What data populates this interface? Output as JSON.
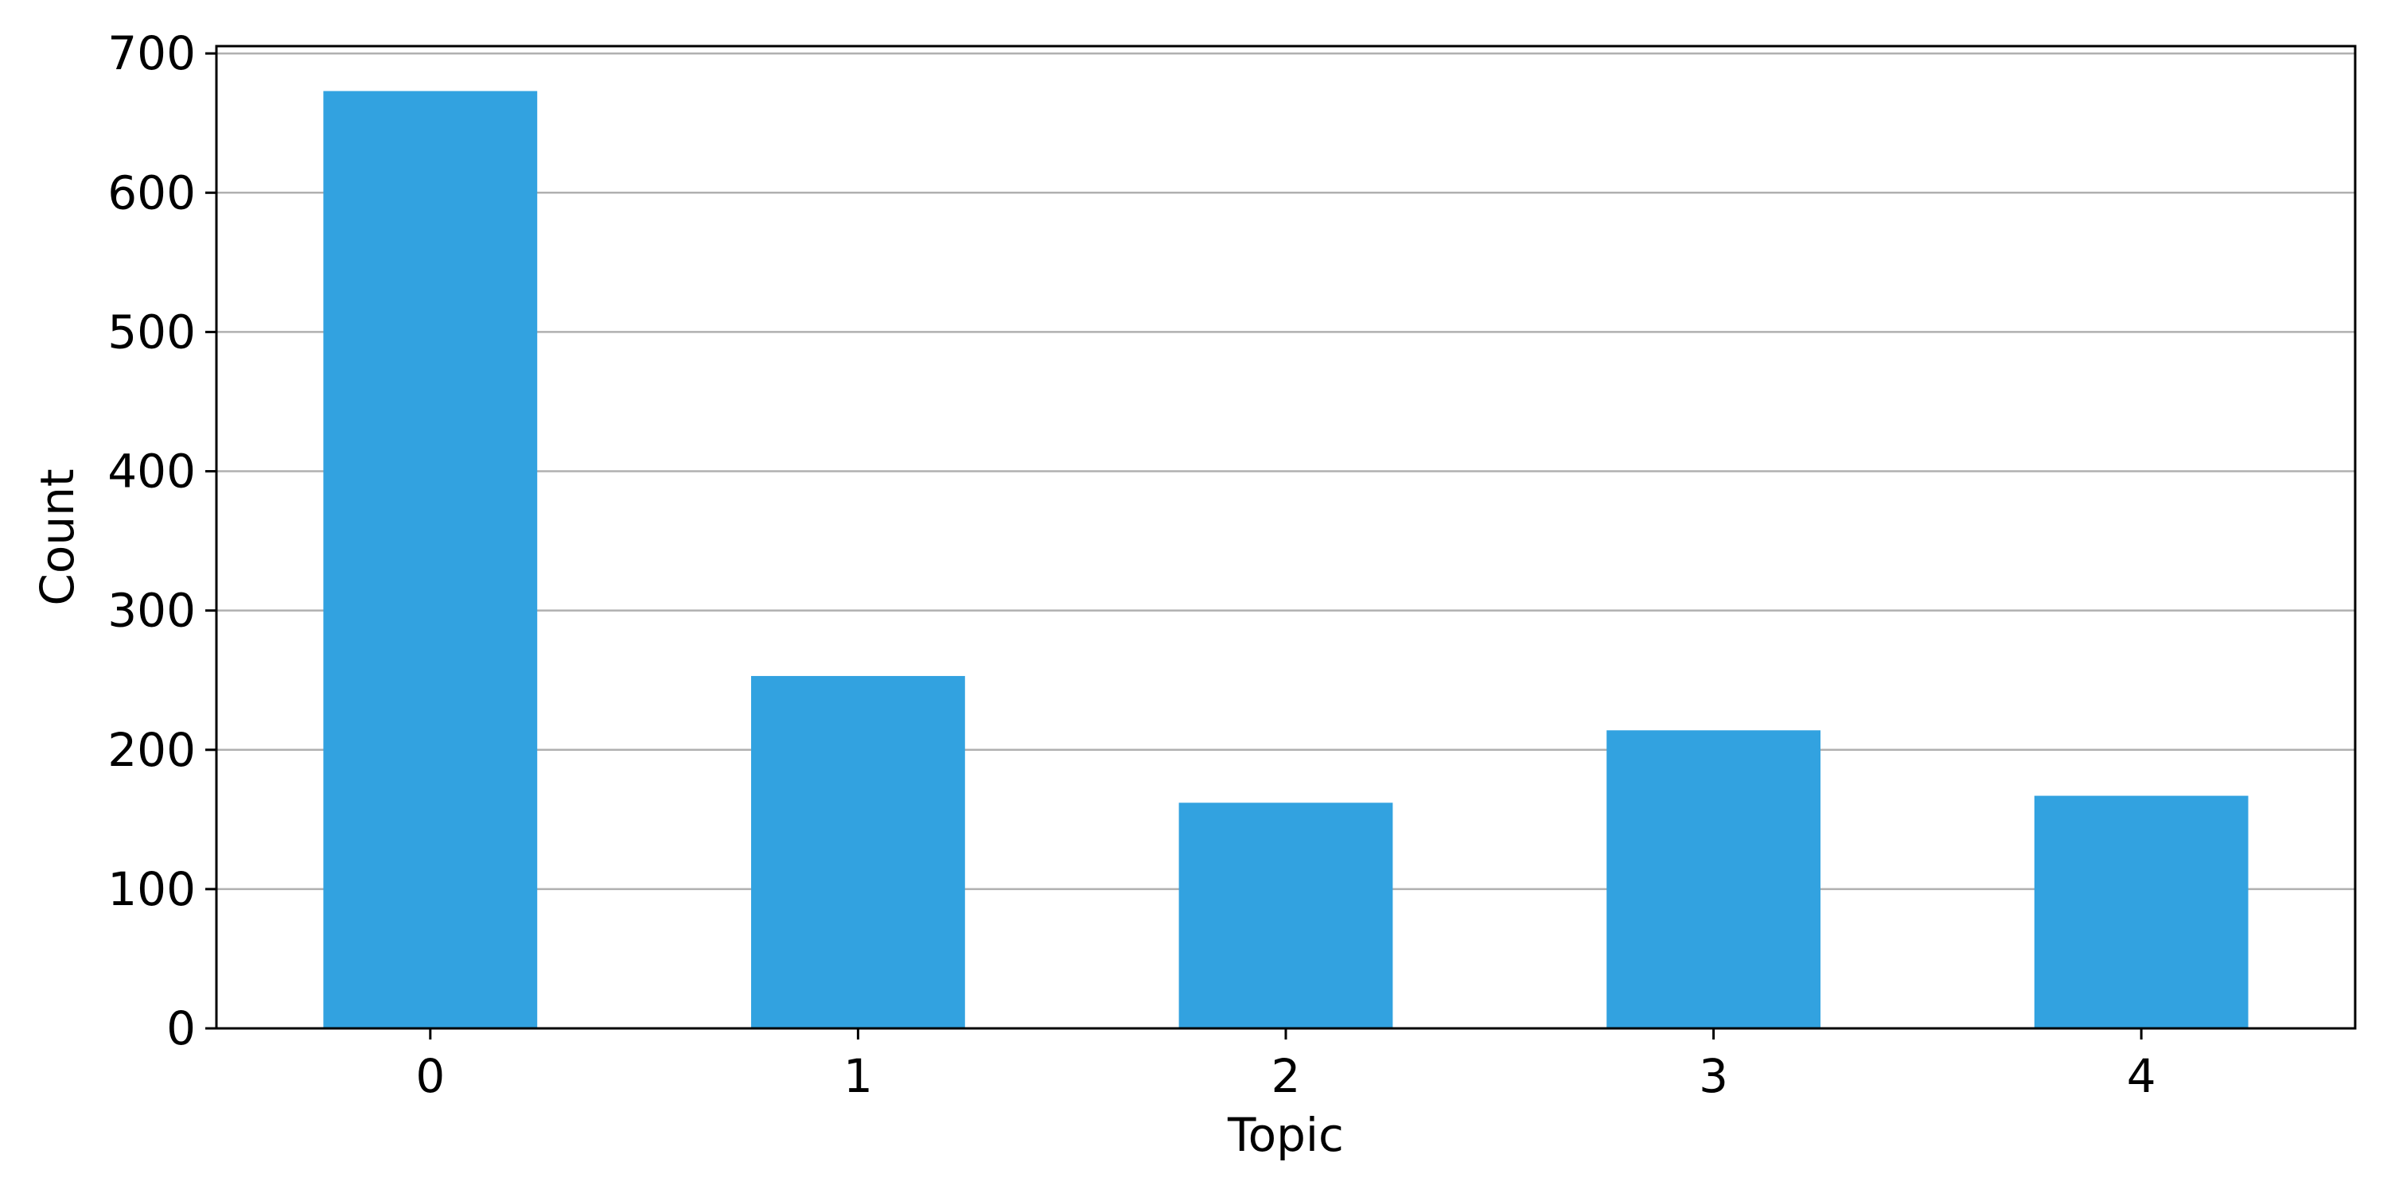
{
  "chart_data": {
    "type": "bar",
    "categories": [
      "0",
      "1",
      "2",
      "3",
      "4"
    ],
    "values": [
      673,
      253,
      162,
      214,
      167
    ],
    "title": "",
    "xlabel": "Topic",
    "ylabel": "Count",
    "ylim": [
      0,
      700
    ],
    "yticks": [
      0,
      100,
      200,
      300,
      400,
      500,
      600,
      700
    ],
    "ytick_labels": [
      "0",
      "100",
      "200",
      "300",
      "400",
      "500",
      "600",
      "700"
    ],
    "grid": "y",
    "bar_color": "#32a2e0",
    "grid_color": "#b0b0b0",
    "legend": "none"
  }
}
